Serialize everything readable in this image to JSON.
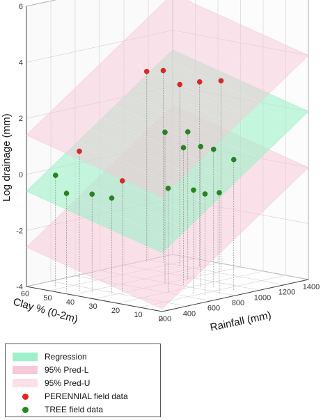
{
  "chart_data": {
    "type": "scatter",
    "subtype": "3d-regression-surface",
    "title": "",
    "xlabel": "Rainfall (mm)",
    "ylabel": "Clay % (0-2m)",
    "zlabel": "Log drainage (mm)",
    "xlim": [
      200,
      1400
    ],
    "ylim": [
      0,
      60
    ],
    "zlim": [
      -4,
      6
    ],
    "x_ticks": [
      "200",
      "400",
      "600",
      "800",
      "1000",
      "1200",
      "1400"
    ],
    "y_ticks": [
      "0",
      "10",
      "20",
      "30",
      "40",
      "50",
      "60"
    ],
    "z_ticks": [
      "-4",
      "-2",
      "0",
      "2",
      "4",
      "6"
    ],
    "surfaces": [
      {
        "name": "Regression",
        "color": "#9ef0c8",
        "corners": {
          "x200_y60": -0.6,
          "x1400_y60": 3.3,
          "x200_y0": -1.9,
          "x1400_y0": 2.0
        }
      },
      {
        "name": "95% Pred-L",
        "color": "#f6c8d8",
        "corners": {
          "x200_y60": -2.6,
          "x1400_y60": 1.3,
          "x200_y0": -3.9,
          "x1400_y0": 0.0
        }
      },
      {
        "name": "95% Pred-U",
        "color": "#f6c8d8",
        "corners": {
          "x200_y60": 1.4,
          "x1400_y60": 5.3,
          "x200_y0": 0.1,
          "x1400_y0": 4.0
        }
      }
    ],
    "series": [
      {
        "name": "PERENNIAL field data",
        "color": "#e8221f",
        "points": [
          {
            "x": 300,
            "y": 42,
            "z": 1.0
          },
          {
            "x": 430,
            "y": 30,
            "z": 0.0
          },
          {
            "x": 1150,
            "y": 58,
            "z": 2.8
          },
          {
            "x": 1230,
            "y": 55,
            "z": 2.8
          },
          {
            "x": 1180,
            "y": 45,
            "z": 2.5
          },
          {
            "x": 1240,
            "y": 30,
            "z": 2.8
          },
          {
            "x": 1250,
            "y": 40,
            "z": 2.6
          }
        ]
      },
      {
        "name": "TREE field data",
        "color": "#1e8a1a",
        "points": [
          {
            "x": 250,
            "y": 45,
            "z": -0.5
          },
          {
            "x": 290,
            "y": 52,
            "z": 0.0
          },
          {
            "x": 330,
            "y": 38,
            "z": -0.5
          },
          {
            "x": 380,
            "y": 32,
            "z": -0.6
          },
          {
            "x": 620,
            "y": 20,
            "z": -0.3
          },
          {
            "x": 680,
            "y": 12,
            "z": -0.3
          },
          {
            "x": 700,
            "y": 8,
            "z": -0.4
          },
          {
            "x": 780,
            "y": 30,
            "z": 1.4
          },
          {
            "x": 820,
            "y": 24,
            "z": 0.9
          },
          {
            "x": 880,
            "y": 5,
            "z": 0.7
          },
          {
            "x": 900,
            "y": 15,
            "z": 0.9
          },
          {
            "x": 930,
            "y": 28,
            "z": 1.3
          },
          {
            "x": 780,
            "y": 6,
            "z": -0.4
          },
          {
            "x": 850,
            "y": 18,
            "z": 1.0
          }
        ]
      }
    ],
    "grid": true,
    "legend_position": "below-left",
    "legend": [
      {
        "label": "Regression",
        "kind": "surface",
        "color": "#9ef0c8"
      },
      {
        "label": "95% Pred-L",
        "kind": "surface",
        "color": "#f6c8d8"
      },
      {
        "label": "95% Pred-U",
        "kind": "surface",
        "color": "#f6c8d8"
      },
      {
        "label": "PERENNIAL field data",
        "kind": "point",
        "color": "#e8221f"
      },
      {
        "label": "TREE field data",
        "kind": "point",
        "color": "#1e8a1a"
      }
    ]
  }
}
